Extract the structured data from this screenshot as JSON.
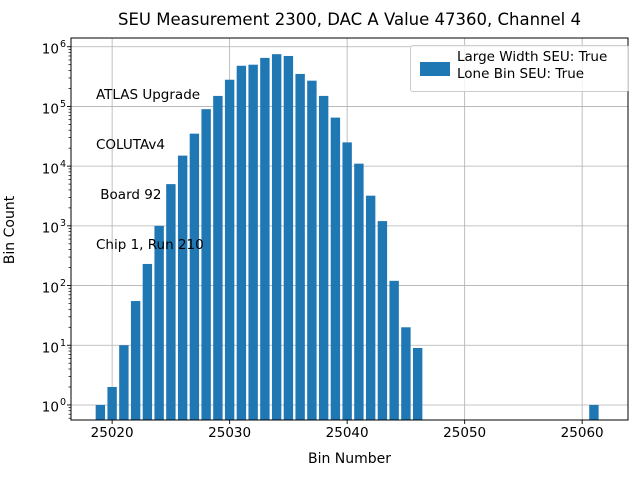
{
  "chart_data": {
    "type": "bar",
    "title": "SEU Measurement 2300, DAC A Value 47360, Channel 4",
    "xlabel": "Bin Number",
    "ylabel": "Bin Count",
    "yscale": "log",
    "grid": true,
    "bar_color": "#1f77b4",
    "grid_color": "#b0b0b0",
    "spine_color": "#000000",
    "bar_width_units": 0.8,
    "xlim": [
      25016.5,
      25063.9
    ],
    "ylim": [
      0.56,
      1400000
    ],
    "x": [
      25019,
      25020,
      25021,
      25022,
      25023,
      25024,
      25025,
      25026,
      25027,
      25028,
      25029,
      25030,
      25031,
      25032,
      25033,
      25034,
      25035,
      25036,
      25037,
      25038,
      25039,
      25040,
      25041,
      25042,
      25043,
      25044,
      25045,
      25046,
      25061
    ],
    "values": [
      1,
      2,
      10,
      55,
      230,
      1000,
      5000,
      15000,
      35000,
      90000,
      150000,
      280000,
      480000,
      500000,
      650000,
      750000,
      700000,
      350000,
      270000,
      150000,
      65000,
      25000,
      11000,
      3200,
      1200,
      120,
      20,
      9,
      1
    ],
    "xticks": [
      25020,
      25030,
      25040,
      25050,
      25060
    ],
    "xtick_labels": [
      "25020",
      "25030",
      "25040",
      "25050",
      "25060"
    ],
    "ytick_base": "10",
    "ytick_exps": [
      "0",
      "1",
      "2",
      "3",
      "4",
      "5",
      "6"
    ],
    "legend": {
      "position": "upper right",
      "swatch_color": "#1f77b4",
      "labels": [
        "Large Width SEU: True",
        "Lone Bin SEU: True"
      ]
    },
    "annotation_lines": [
      "ATLAS Upgrade",
      "COLUTAv4",
      " Board 92",
      "Chip 1, Run 210"
    ]
  }
}
